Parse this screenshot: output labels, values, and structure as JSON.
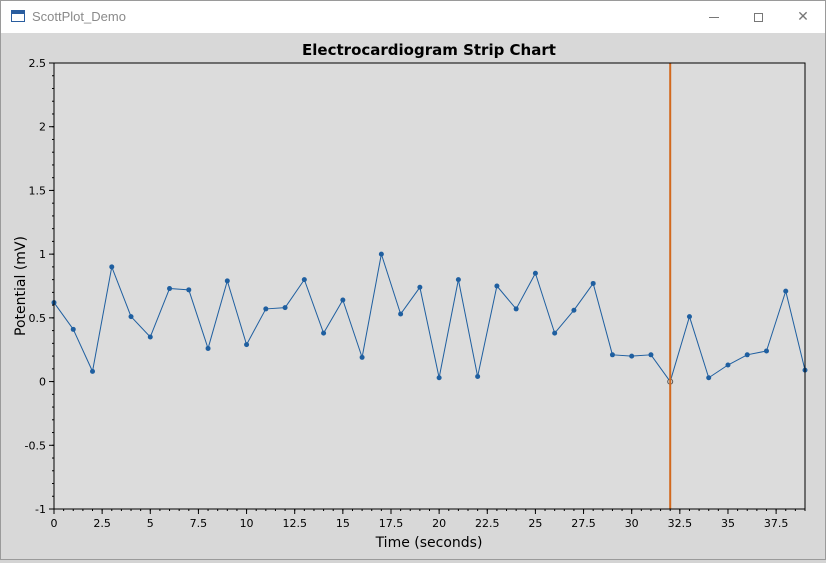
{
  "window": {
    "title": "ScottPlot_Demo",
    "icon": "app-window-icon",
    "minimize_icon": "minimize-icon",
    "maximize_icon": "maximize-icon",
    "close_icon": "close-icon"
  },
  "chart_data": {
    "type": "line",
    "title": "Electrocardiogram Strip Chart",
    "xlabel": "Time (seconds)",
    "ylabel": "Potential (mV)",
    "xlim": [
      0,
      39
    ],
    "ylim": [
      -1,
      2.5
    ],
    "x_ticks": [
      0,
      2.5,
      5,
      7.5,
      10,
      12.5,
      15,
      17.5,
      20,
      22.5,
      25,
      27.5,
      30,
      32.5,
      35,
      37.5
    ],
    "x_tick_labels": [
      "0",
      "2.5",
      "5",
      "7.5",
      "10",
      "12.5",
      "15",
      "17.5",
      "20",
      "22.5",
      "25",
      "27.5",
      "30",
      "32.5",
      "35",
      "37.5"
    ],
    "y_ticks": [
      -1,
      -0.5,
      0,
      0.5,
      1,
      1.5,
      2,
      2.5
    ],
    "y_tick_labels": [
      "-1",
      "-0.5",
      "0",
      "0.5",
      "1",
      "1.5",
      "2",
      "2.5"
    ],
    "grid": false,
    "line_color": "#1f5fa0",
    "marker_color": "#1f5fa0",
    "x": [
      0,
      1,
      2,
      3,
      4,
      5,
      6,
      7,
      8,
      9,
      10,
      11,
      12,
      13,
      14,
      15,
      16,
      17,
      18,
      19,
      20,
      21,
      22,
      23,
      24,
      25,
      26,
      27,
      28,
      29,
      30,
      31,
      32,
      33,
      34,
      35,
      36,
      37,
      38,
      39
    ],
    "values": [
      0.62,
      0.41,
      0.08,
      0.9,
      0.51,
      0.35,
      0.73,
      0.72,
      0.26,
      0.79,
      0.29,
      0.57,
      0.58,
      0.8,
      0.38,
      0.64,
      0.19,
      1.0,
      0.53,
      0.74,
      0.03,
      0.8,
      0.04,
      0.75,
      0.57,
      0.85,
      0.38,
      0.56,
      0.77,
      0.21,
      0.2,
      0.21,
      0.0,
      0.51,
      0.03,
      0.13,
      0.21,
      0.24,
      0.71,
      0.09
    ],
    "highlight_point": {
      "x": 32,
      "y": 0.0
    },
    "vline": {
      "x": 32,
      "color": "#d2691e"
    }
  }
}
